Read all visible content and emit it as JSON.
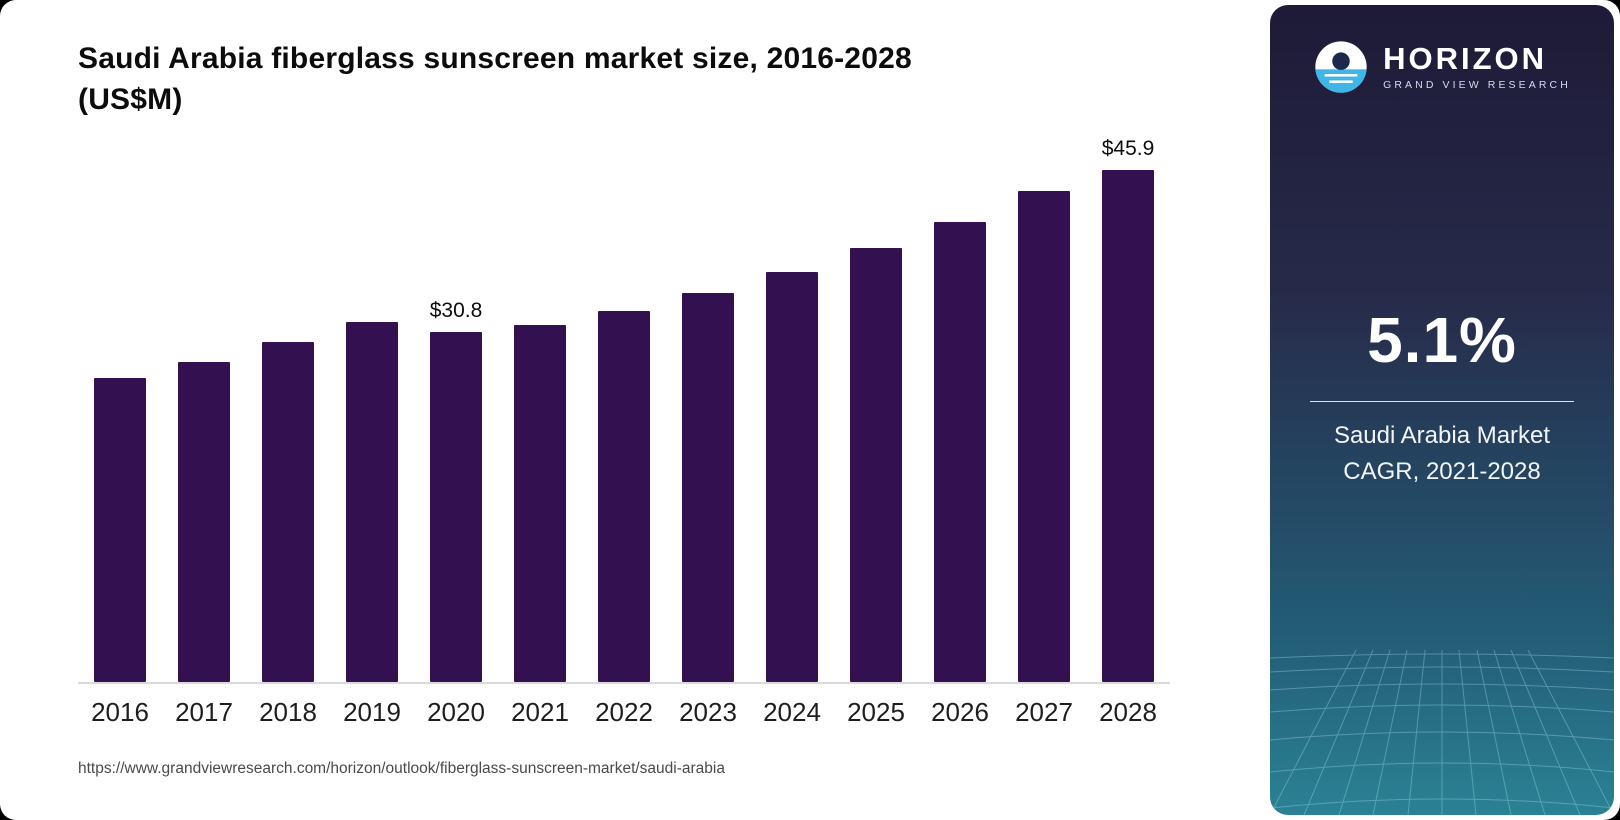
{
  "title": {
    "line1": "Saudi Arabia fiberglass sunscreen market size, 2016-2028",
    "line2": "(US$M)"
  },
  "source_url": "https://www.grandviewresearch.com/horizon/outlook/fiberglass-sunscreen-market/saudi-arabia",
  "side_panel": {
    "brand_name": "HORIZON",
    "brand_subtitle": "GRAND VIEW RESEARCH",
    "stat_value": "5.1%",
    "stat_label_line1": "Saudi Arabia Market",
    "stat_label_line2": "CAGR, 2021-2028"
  },
  "colors": {
    "bar": "#33104f",
    "panel_top": "#1e1a37",
    "panel_bottom": "#2b8294",
    "accent_blue": "#3fb6e8"
  },
  "chart_data": {
    "type": "bar",
    "title": "Saudi Arabia fiberglass sunscreen market size, 2016-2028 (US$M)",
    "xlabel": "",
    "ylabel": "US$M",
    "ylim": [
      0,
      48
    ],
    "grid": false,
    "legend": null,
    "categories": [
      "2016",
      "2017",
      "2018",
      "2019",
      "2020",
      "2021",
      "2022",
      "2023",
      "2024",
      "2025",
      "2026",
      "2027",
      "2028"
    ],
    "values": [
      26.8,
      28.2,
      29.9,
      31.7,
      30.8,
      31.4,
      32.7,
      34.2,
      36.1,
      38.2,
      40.5,
      43.2,
      45.9
    ],
    "bar_labels": [
      null,
      null,
      null,
      null,
      "$30.8",
      null,
      null,
      null,
      null,
      null,
      null,
      null,
      "$45.9"
    ]
  }
}
